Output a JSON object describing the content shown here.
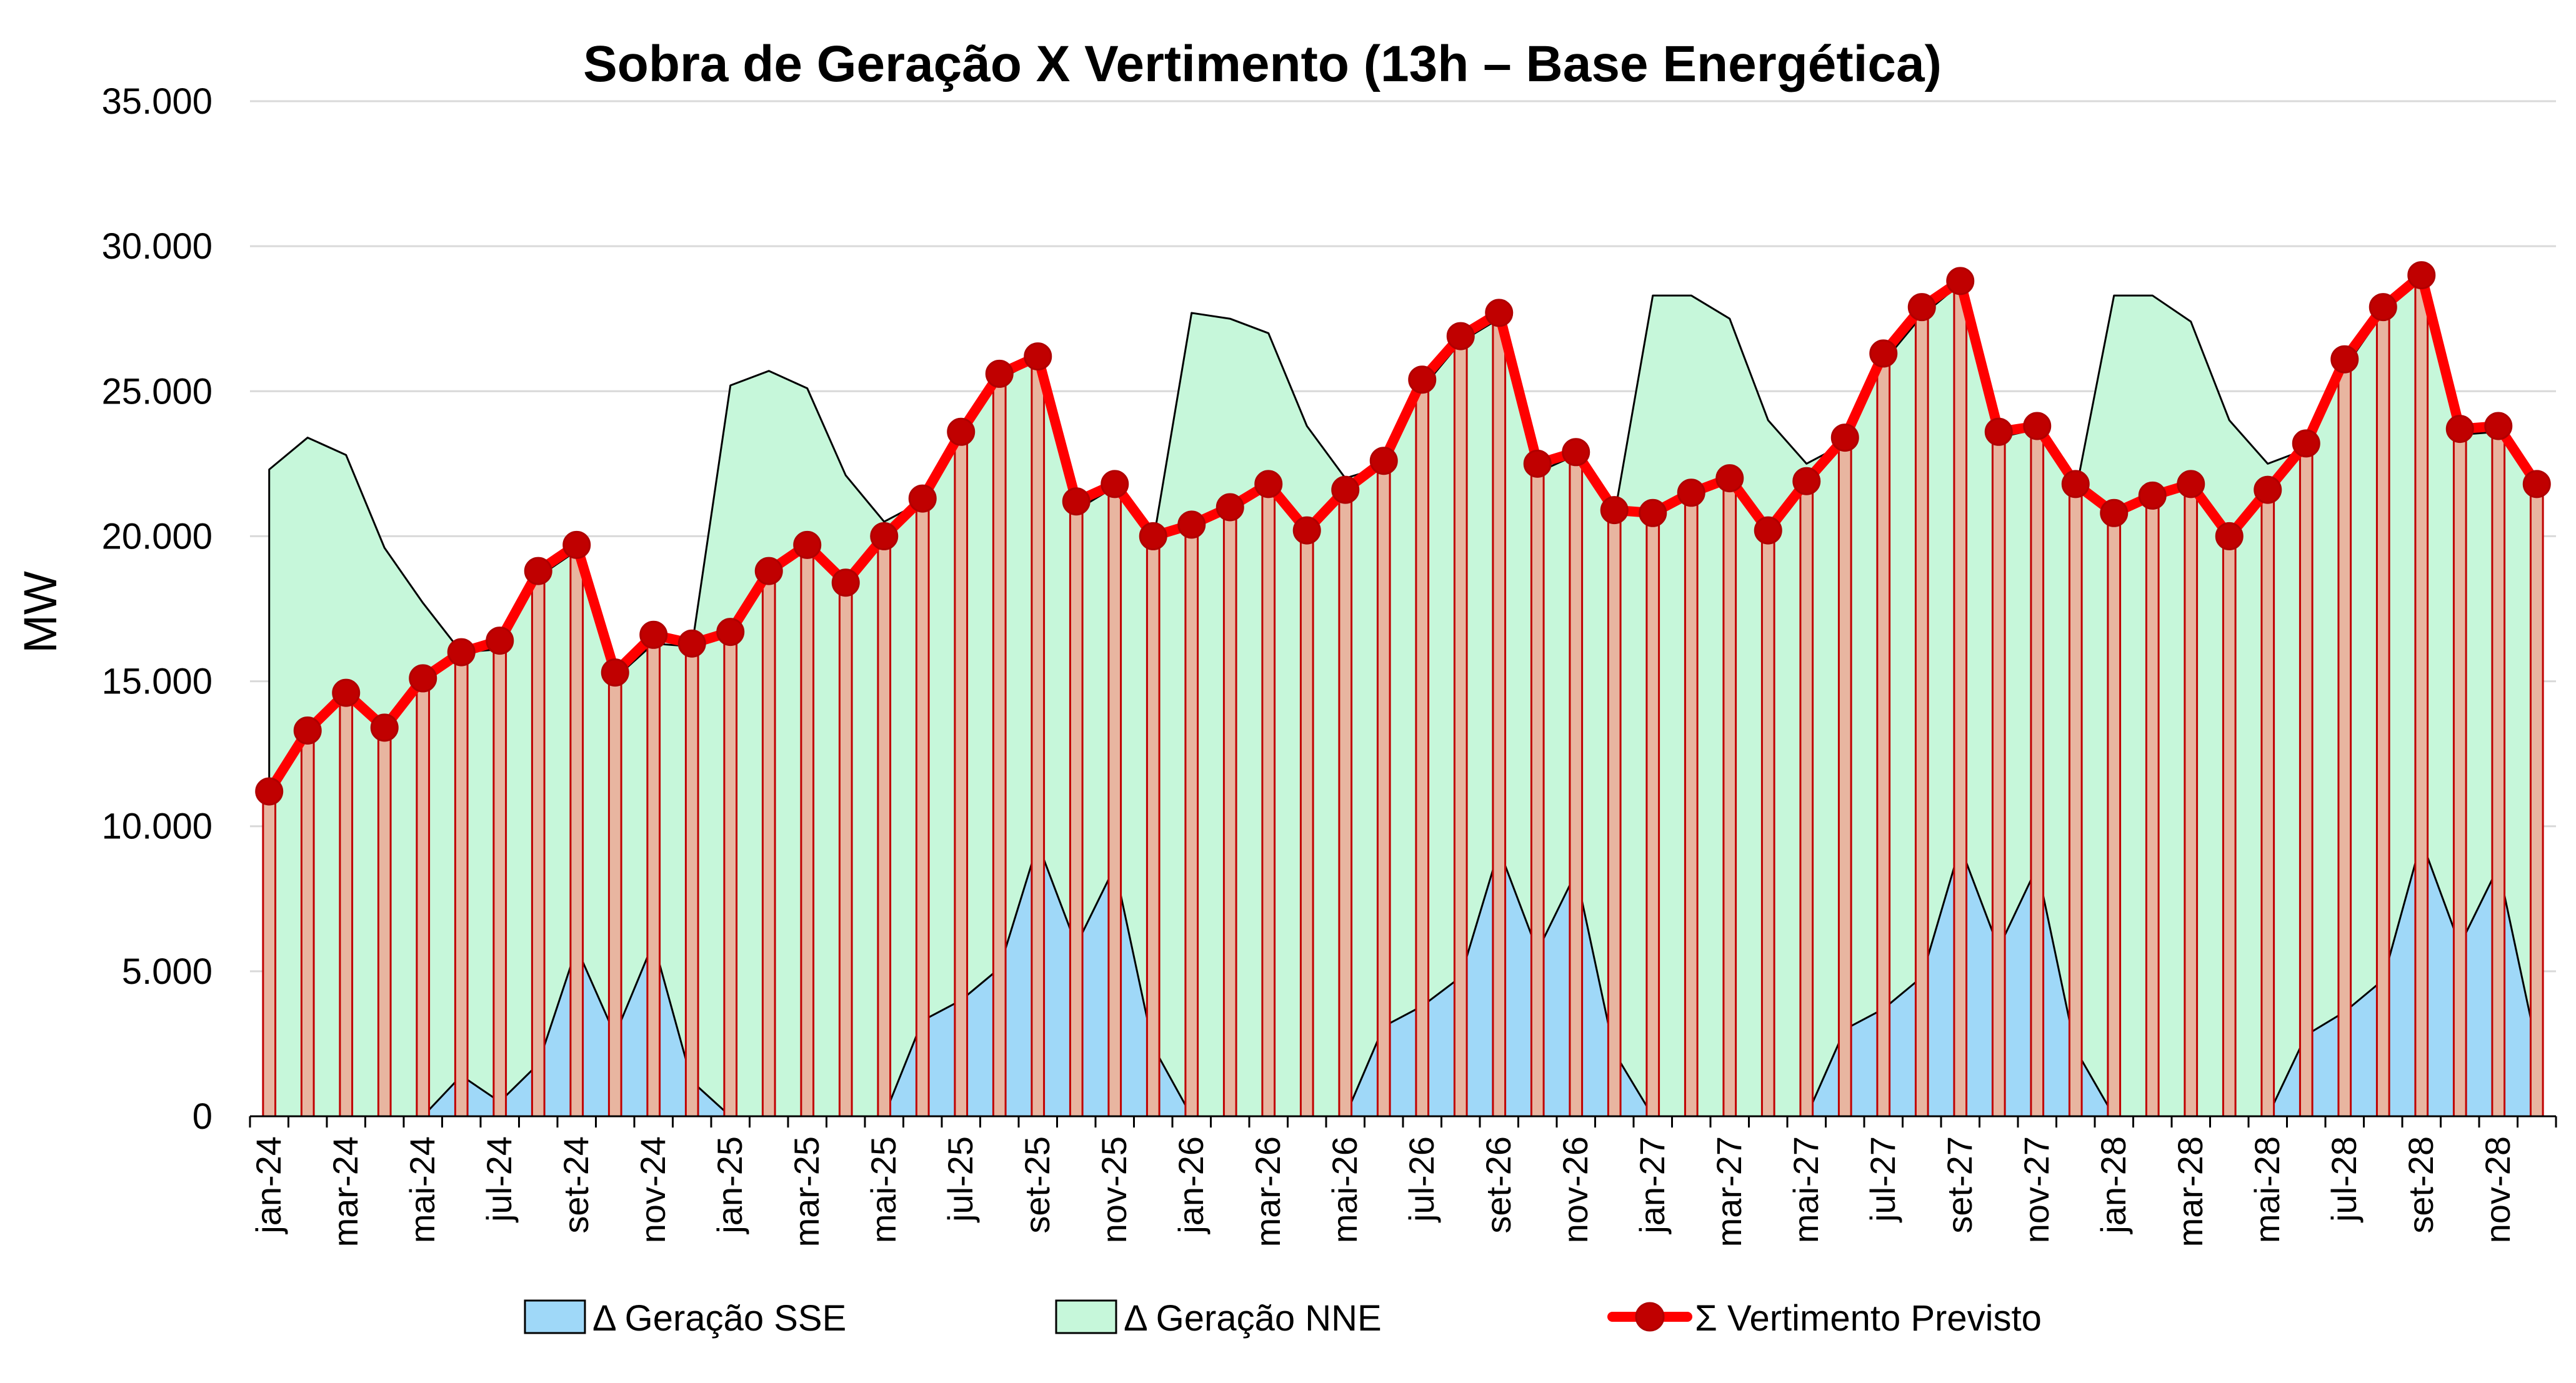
{
  "chart_data": {
    "type": "area",
    "title": "Sobra de Geração X Vertimento (13h – Base Energética)",
    "xlabel": "",
    "ylabel": "MW",
    "ylim": [
      0,
      35000
    ],
    "yticks": [
      0,
      5000,
      10000,
      15000,
      20000,
      25000,
      30000,
      35000
    ],
    "ytick_labels": [
      "0",
      "5.000",
      "10.000",
      "15.000",
      "20.000",
      "25.000",
      "30.000",
      "35.000"
    ],
    "grid": true,
    "legend_position": "bottom",
    "months": [
      "jan-24",
      "fev-24",
      "mar-24",
      "abr-24",
      "mai-24",
      "jun-24",
      "jul-24",
      "ago-24",
      "set-24",
      "out-24",
      "nov-24",
      "dez-24",
      "jan-25",
      "fev-25",
      "mar-25",
      "abr-25",
      "mai-25",
      "jun-25",
      "jul-25",
      "ago-25",
      "set-25",
      "out-25",
      "nov-25",
      "dez-25",
      "jan-26",
      "fev-26",
      "mar-26",
      "abr-26",
      "mai-26",
      "jun-26",
      "jul-26",
      "ago-26",
      "set-26",
      "out-26",
      "nov-26",
      "dez-26",
      "jan-27",
      "fev-27",
      "mar-27",
      "abr-27",
      "mai-27",
      "jun-27",
      "jul-27",
      "ago-27",
      "set-27",
      "out-27",
      "nov-27",
      "dez-27",
      "jan-28",
      "fev-28",
      "mar-28",
      "abr-28",
      "mai-28",
      "jun-28",
      "jul-28",
      "ago-28",
      "set-28",
      "out-28",
      "nov-28",
      "dez-28"
    ],
    "visible_tick_labels": [
      "jan-24",
      "mar-24",
      "mai-24",
      "jul-24",
      "set-24",
      "nov-24",
      "jan-25",
      "mar-25",
      "mai-25",
      "jul-25",
      "set-25",
      "nov-25",
      "jan-26",
      "mar-26",
      "mai-26",
      "jul-26",
      "set-26",
      "nov-26",
      "jan-27",
      "mar-27",
      "mai-27",
      "jul-27",
      "set-27",
      "nov-27",
      "jan-28",
      "mar-28",
      "mai-28",
      "jul-28",
      "set-28",
      "nov-28"
    ],
    "series": [
      {
        "name": "Δ Geração SSE",
        "kind": "area",
        "color": "#9fd8f8",
        "values": [
          0,
          0,
          0,
          0,
          0,
          1400,
          500,
          1800,
          5800,
          2800,
          6000,
          1200,
          0,
          0,
          0,
          0,
          0,
          3300,
          4000,
          5100,
          9400,
          5900,
          8600,
          2400,
          0,
          0,
          0,
          0,
          0,
          3100,
          3800,
          4800,
          9200,
          5700,
          8400,
          2200,
          0,
          0,
          0,
          0,
          0,
          3000,
          3700,
          4800,
          9300,
          5800,
          8600,
          2300,
          0,
          0,
          0,
          0,
          0,
          2800,
          3600,
          4700,
          9500,
          5900,
          8600,
          2400
        ]
      },
      {
        "name": "Δ Geração NNE",
        "kind": "area",
        "color": "#c6f7da",
        "values": [
          22300,
          23400,
          22800,
          19600,
          17700,
          16000,
          16100,
          18600,
          19500,
          15100,
          16300,
          16200,
          25200,
          25700,
          25100,
          22100,
          20500,
          21200,
          23400,
          25400,
          26100,
          20900,
          21700,
          19800,
          27700,
          27500,
          27000,
          23800,
          22000,
          22400,
          25100,
          26700,
          27500,
          22200,
          22800,
          20700,
          28300,
          28300,
          27500,
          24000,
          22500,
          23200,
          26000,
          27600,
          28700,
          23400,
          23700,
          21500,
          28300,
          28300,
          27400,
          24000,
          22500,
          23000,
          25800,
          27700,
          28900,
          23500,
          23600,
          21800
        ]
      },
      {
        "name": "Σ Vertimento Previsto",
        "kind": "line-bar",
        "color": "#ff0000",
        "bar_fill": "#e8b5a0",
        "bar_stroke": "#c00000",
        "values": [
          11200,
          13300,
          14600,
          13400,
          15100,
          16000,
          16400,
          18800,
          19700,
          15300,
          16600,
          16300,
          16700,
          18800,
          19700,
          18400,
          20000,
          21300,
          23600,
          25600,
          26200,
          21200,
          21800,
          20000,
          20400,
          21000,
          21800,
          20200,
          21600,
          22600,
          25400,
          26900,
          27700,
          22500,
          22900,
          20900,
          20800,
          21500,
          22000,
          20200,
          21900,
          23400,
          26300,
          27900,
          28800,
          23600,
          23800,
          21800,
          20800,
          21400,
          21800,
          20000,
          21600,
          23200,
          26100,
          27900,
          29000,
          23700,
          23800,
          21800
        ]
      }
    ]
  }
}
